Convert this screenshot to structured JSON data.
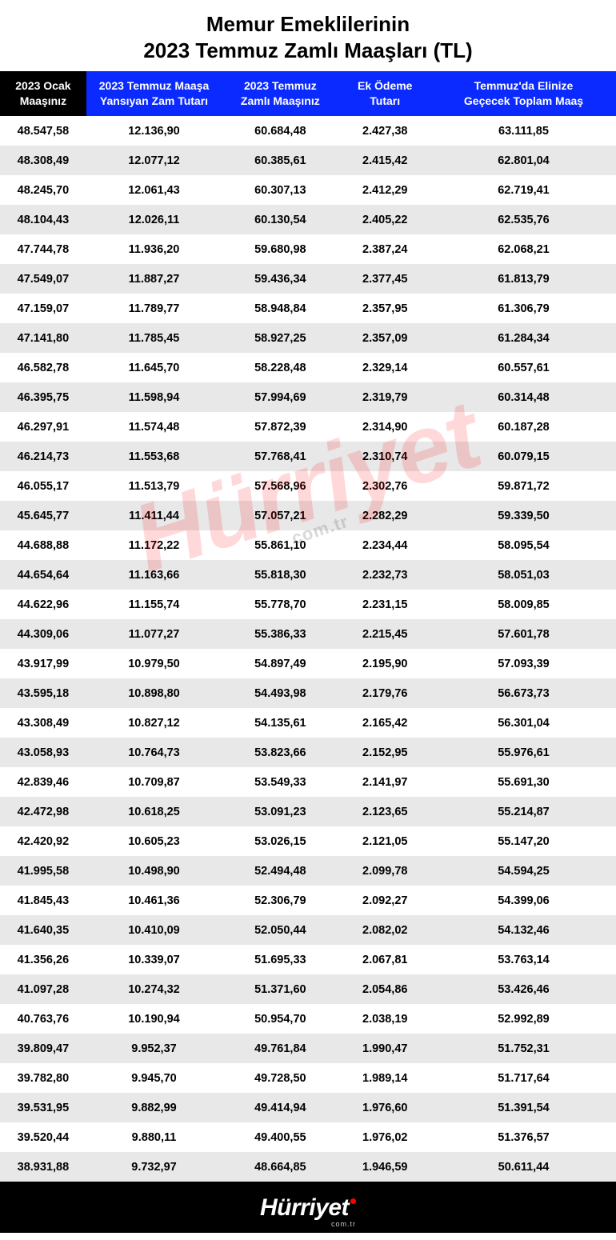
{
  "title": {
    "line1": "Memur Emeklilerinin",
    "line2": "2023 Temmuz Zamlı Maaşları (TL)"
  },
  "styling": {
    "header_bg_dark": "#000000",
    "header_bg_blue": "#0a2aff",
    "header_text": "#ffffff",
    "row_even_bg": "#ffffff",
    "row_odd_bg": "#e8e8e8",
    "cell_text": "#000000",
    "title_fontsize": 26,
    "header_fontsize": 14,
    "cell_fontsize": 14.5,
    "col_widths_pct": [
      14,
      22,
      19,
      15,
      30
    ]
  },
  "table": {
    "columns": [
      {
        "l1": "2023 Ocak",
        "l2": "Maaşınız",
        "dark": true
      },
      {
        "l1": "2023 Temmuz Maaşa",
        "l2": "Yansıyan Zam Tutarı",
        "dark": false
      },
      {
        "l1": "2023 Temmuz",
        "l2": "Zamlı Maaşınız",
        "dark": false
      },
      {
        "l1": "Ek Ödeme",
        "l2": "Tutarı",
        "dark": false
      },
      {
        "l1": "Temmuz'da Elinize",
        "l2": "Geçecek Toplam Maaş",
        "dark": false
      }
    ],
    "rows": [
      [
        "48.547,58",
        "12.136,90",
        "60.684,48",
        "2.427,38",
        "63.111,85"
      ],
      [
        "48.308,49",
        "12.077,12",
        "60.385,61",
        "2.415,42",
        "62.801,04"
      ],
      [
        "48.245,70",
        "12.061,43",
        "60.307,13",
        "2.412,29",
        "62.719,41"
      ],
      [
        "48.104,43",
        "12.026,11",
        "60.130,54",
        "2.405,22",
        "62.535,76"
      ],
      [
        "47.744,78",
        "11.936,20",
        "59.680,98",
        "2.387,24",
        "62.068,21"
      ],
      [
        "47.549,07",
        "11.887,27",
        "59.436,34",
        "2.377,45",
        "61.813,79"
      ],
      [
        "47.159,07",
        "11.789,77",
        "58.948,84",
        "2.357,95",
        "61.306,79"
      ],
      [
        "47.141,80",
        "11.785,45",
        "58.927,25",
        "2.357,09",
        "61.284,34"
      ],
      [
        "46.582,78",
        "11.645,70",
        "58.228,48",
        "2.329,14",
        "60.557,61"
      ],
      [
        "46.395,75",
        "11.598,94",
        "57.994,69",
        "2.319,79",
        "60.314,48"
      ],
      [
        "46.297,91",
        "11.574,48",
        "57.872,39",
        "2.314,90",
        "60.187,28"
      ],
      [
        "46.214,73",
        "11.553,68",
        "57.768,41",
        "2.310,74",
        "60.079,15"
      ],
      [
        "46.055,17",
        "11.513,79",
        "57.568,96",
        "2.302,76",
        "59.871,72"
      ],
      [
        "45.645,77",
        "11.411,44",
        "57.057,21",
        "2.282,29",
        "59.339,50"
      ],
      [
        "44.688,88",
        "11.172,22",
        "55.861,10",
        "2.234,44",
        "58.095,54"
      ],
      [
        "44.654,64",
        "11.163,66",
        "55.818,30",
        "2.232,73",
        "58.051,03"
      ],
      [
        "44.622,96",
        "11.155,74",
        "55.778,70",
        "2.231,15",
        "58.009,85"
      ],
      [
        "44.309,06",
        "11.077,27",
        "55.386,33",
        "2.215,45",
        "57.601,78"
      ],
      [
        "43.917,99",
        "10.979,50",
        "54.897,49",
        "2.195,90",
        "57.093,39"
      ],
      [
        "43.595,18",
        "10.898,80",
        "54.493,98",
        "2.179,76",
        "56.673,73"
      ],
      [
        "43.308,49",
        "10.827,12",
        "54.135,61",
        "2.165,42",
        "56.301,04"
      ],
      [
        "43.058,93",
        "10.764,73",
        "53.823,66",
        "2.152,95",
        "55.976,61"
      ],
      [
        "42.839,46",
        "10.709,87",
        "53.549,33",
        "2.141,97",
        "55.691,30"
      ],
      [
        "42.472,98",
        "10.618,25",
        "53.091,23",
        "2.123,65",
        "55.214,87"
      ],
      [
        "42.420,92",
        "10.605,23",
        "53.026,15",
        "2.121,05",
        "55.147,20"
      ],
      [
        "41.995,58",
        "10.498,90",
        "52.494,48",
        "2.099,78",
        "54.594,25"
      ],
      [
        "41.845,43",
        "10.461,36",
        "52.306,79",
        "2.092,27",
        "54.399,06"
      ],
      [
        "41.640,35",
        "10.410,09",
        "52.050,44",
        "2.082,02",
        "54.132,46"
      ],
      [
        "41.356,26",
        "10.339,07",
        "51.695,33",
        "2.067,81",
        "53.763,14"
      ],
      [
        "41.097,28",
        "10.274,32",
        "51.371,60",
        "2.054,86",
        "53.426,46"
      ],
      [
        "40.763,76",
        "10.190,94",
        "50.954,70",
        "2.038,19",
        "52.992,89"
      ],
      [
        "39.809,47",
        "9.952,37",
        "49.761,84",
        "1.990,47",
        "51.752,31"
      ],
      [
        "39.782,80",
        "9.945,70",
        "49.728,50",
        "1.989,14",
        "51.717,64"
      ],
      [
        "39.531,95",
        "9.882,99",
        "49.414,94",
        "1.976,60",
        "51.391,54"
      ],
      [
        "39.520,44",
        "9.880,11",
        "49.400,55",
        "1.976,02",
        "51.376,57"
      ],
      [
        "38.931,88",
        "9.732,97",
        "48.664,85",
        "1.946,59",
        "50.611,44"
      ]
    ]
  },
  "watermark": {
    "main": "Hürriyet",
    "sub": "com.tr"
  },
  "footer": {
    "logo": "Hürriyet",
    "sub": "com.tr"
  }
}
